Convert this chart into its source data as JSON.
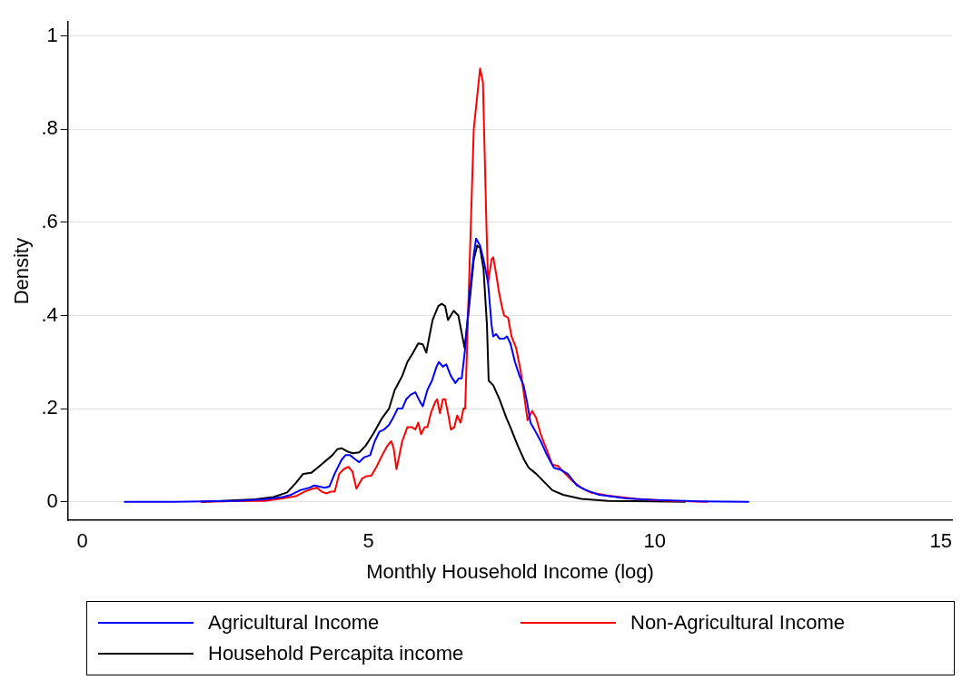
{
  "chart_data": {
    "type": "line",
    "xlabel": "Monthly Household Income (log)",
    "ylabel": "Density",
    "xlim": [
      -0.25,
      15.2
    ],
    "ylim": [
      -0.04,
      1.03
    ],
    "xticks": [
      0,
      5,
      10,
      15
    ],
    "yticks": [
      0,
      {
        "value": 0.2,
        "label": ".2"
      },
      {
        "value": 0.4,
        "label": ".4"
      },
      {
        "value": 0.6,
        "label": ".6"
      },
      {
        "value": 0.8,
        "label": ".8"
      },
      1
    ],
    "grid": "y",
    "legend": "bottom",
    "marker": "none",
    "line_style": "solid",
    "series": [
      {
        "name": "Agricultural Income",
        "color": "#0000ff",
        "x": [
          0.73,
          1.6,
          2.7,
          3.18,
          3.5,
          3.65,
          3.81,
          3.97,
          4.05,
          4.13,
          4.24,
          4.32,
          4.41,
          4.53,
          4.6,
          4.68,
          4.76,
          4.84,
          4.92,
          5.03,
          5.11,
          5.19,
          5.27,
          5.36,
          5.43,
          5.51,
          5.59,
          5.66,
          5.74,
          5.82,
          5.9,
          5.95,
          6.03,
          6.11,
          6.19,
          6.23,
          6.3,
          6.36,
          6.44,
          6.52,
          6.58,
          6.63,
          6.69,
          6.77,
          6.84,
          6.88,
          6.95,
          7.01,
          7.09,
          7.15,
          7.18,
          7.23,
          7.29,
          7.37,
          7.42,
          7.48,
          7.56,
          7.64,
          7.71,
          7.77,
          7.83,
          7.9,
          8.01,
          8.12,
          8.24,
          8.37,
          8.48,
          8.64,
          8.8,
          9.03,
          9.51,
          9.98,
          10.78,
          11.65
        ],
        "values": [
          0,
          0,
          0.002,
          0.005,
          0.01,
          0.015,
          0.025,
          0.03,
          0.035,
          0.033,
          0.03,
          0.033,
          0.06,
          0.09,
          0.1,
          0.1,
          0.092,
          0.085,
          0.095,
          0.1,
          0.13,
          0.15,
          0.155,
          0.165,
          0.18,
          0.2,
          0.2,
          0.22,
          0.23,
          0.235,
          0.215,
          0.205,
          0.24,
          0.26,
          0.29,
          0.3,
          0.29,
          0.295,
          0.27,
          0.255,
          0.265,
          0.265,
          0.33,
          0.45,
          0.53,
          0.565,
          0.55,
          0.52,
          0.47,
          0.38,
          0.355,
          0.36,
          0.35,
          0.35,
          0.355,
          0.34,
          0.3,
          0.27,
          0.25,
          0.215,
          0.17,
          0.155,
          0.13,
          0.1,
          0.073,
          0.068,
          0.06,
          0.035,
          0.025,
          0.015,
          0.007,
          0.004,
          0.001,
          0
        ]
      },
      {
        "name": "Non-Agricultural Income",
        "color": "#ff0000",
        "x": [
          2.07,
          3.02,
          3.18,
          3.5,
          3.73,
          3.89,
          4.0,
          4.1,
          4.18,
          4.26,
          4.35,
          4.41,
          4.49,
          4.57,
          4.65,
          4.72,
          4.79,
          4.89,
          4.97,
          5.05,
          5.14,
          5.24,
          5.33,
          5.4,
          5.44,
          5.49,
          5.59,
          5.68,
          5.76,
          5.82,
          5.87,
          5.92,
          5.98,
          6.03,
          6.09,
          6.12,
          6.17,
          6.2,
          6.25,
          6.3,
          6.34,
          6.39,
          6.44,
          6.5,
          6.55,
          6.61,
          6.66,
          6.69,
          6.84,
          6.95,
          7.0,
          7.06,
          7.09,
          7.15,
          7.18,
          7.23,
          7.28,
          7.33,
          7.37,
          7.44,
          7.5,
          7.58,
          7.66,
          7.74,
          7.78,
          7.86,
          7.93,
          8.01,
          8.12,
          8.21,
          8.31,
          8.4,
          8.56,
          8.72,
          8.88,
          9.19,
          9.67,
          10.3,
          10.93
        ],
        "values": [
          0,
          0.002,
          0.002,
          0.007,
          0.012,
          0.022,
          0.027,
          0.03,
          0.022,
          0.018,
          0.022,
          0.022,
          0.06,
          0.07,
          0.075,
          0.065,
          0.028,
          0.05,
          0.055,
          0.056,
          0.075,
          0.1,
          0.12,
          0.13,
          0.115,
          0.07,
          0.13,
          0.16,
          0.16,
          0.155,
          0.17,
          0.145,
          0.16,
          0.16,
          0.19,
          0.2,
          0.215,
          0.22,
          0.19,
          0.22,
          0.22,
          0.19,
          0.155,
          0.16,
          0.185,
          0.17,
          0.2,
          0.2,
          0.8,
          0.93,
          0.9,
          0.6,
          0.47,
          0.52,
          0.525,
          0.49,
          0.45,
          0.42,
          0.4,
          0.395,
          0.355,
          0.33,
          0.28,
          0.21,
          0.175,
          0.195,
          0.18,
          0.145,
          0.11,
          0.08,
          0.077,
          0.065,
          0.045,
          0.03,
          0.02,
          0.013,
          0.006,
          0.002,
          0
        ]
      },
      {
        "name": "Household Percapita income",
        "color": "#000000",
        "x": [
          2.07,
          3.02,
          3.34,
          3.58,
          3.73,
          3.86,
          4.0,
          4.13,
          4.37,
          4.46,
          4.53,
          4.65,
          4.73,
          4.84,
          4.95,
          5.08,
          5.24,
          5.36,
          5.46,
          5.59,
          5.68,
          5.78,
          5.87,
          5.95,
          6.01,
          6.12,
          6.22,
          6.28,
          6.34,
          6.39,
          6.49,
          6.57,
          6.68,
          6.76,
          6.84,
          6.9,
          6.95,
          7.01,
          7.07,
          7.1,
          7.18,
          7.29,
          7.41,
          7.48,
          7.61,
          7.72,
          7.8,
          7.93,
          8.09,
          8.21,
          8.4,
          8.72,
          9.19,
          9.98,
          10.54
        ],
        "values": [
          0,
          0.005,
          0.01,
          0.02,
          0.04,
          0.06,
          0.062,
          0.075,
          0.1,
          0.113,
          0.115,
          0.107,
          0.104,
          0.106,
          0.12,
          0.145,
          0.18,
          0.2,
          0.24,
          0.27,
          0.3,
          0.32,
          0.34,
          0.338,
          0.32,
          0.39,
          0.42,
          0.425,
          0.42,
          0.39,
          0.41,
          0.4,
          0.33,
          0.42,
          0.52,
          0.55,
          0.545,
          0.5,
          0.38,
          0.26,
          0.25,
          0.22,
          0.18,
          0.16,
          0.12,
          0.09,
          0.073,
          0.06,
          0.04,
          0.025,
          0.015,
          0.006,
          0.002,
          0.001,
          0
        ]
      }
    ]
  }
}
